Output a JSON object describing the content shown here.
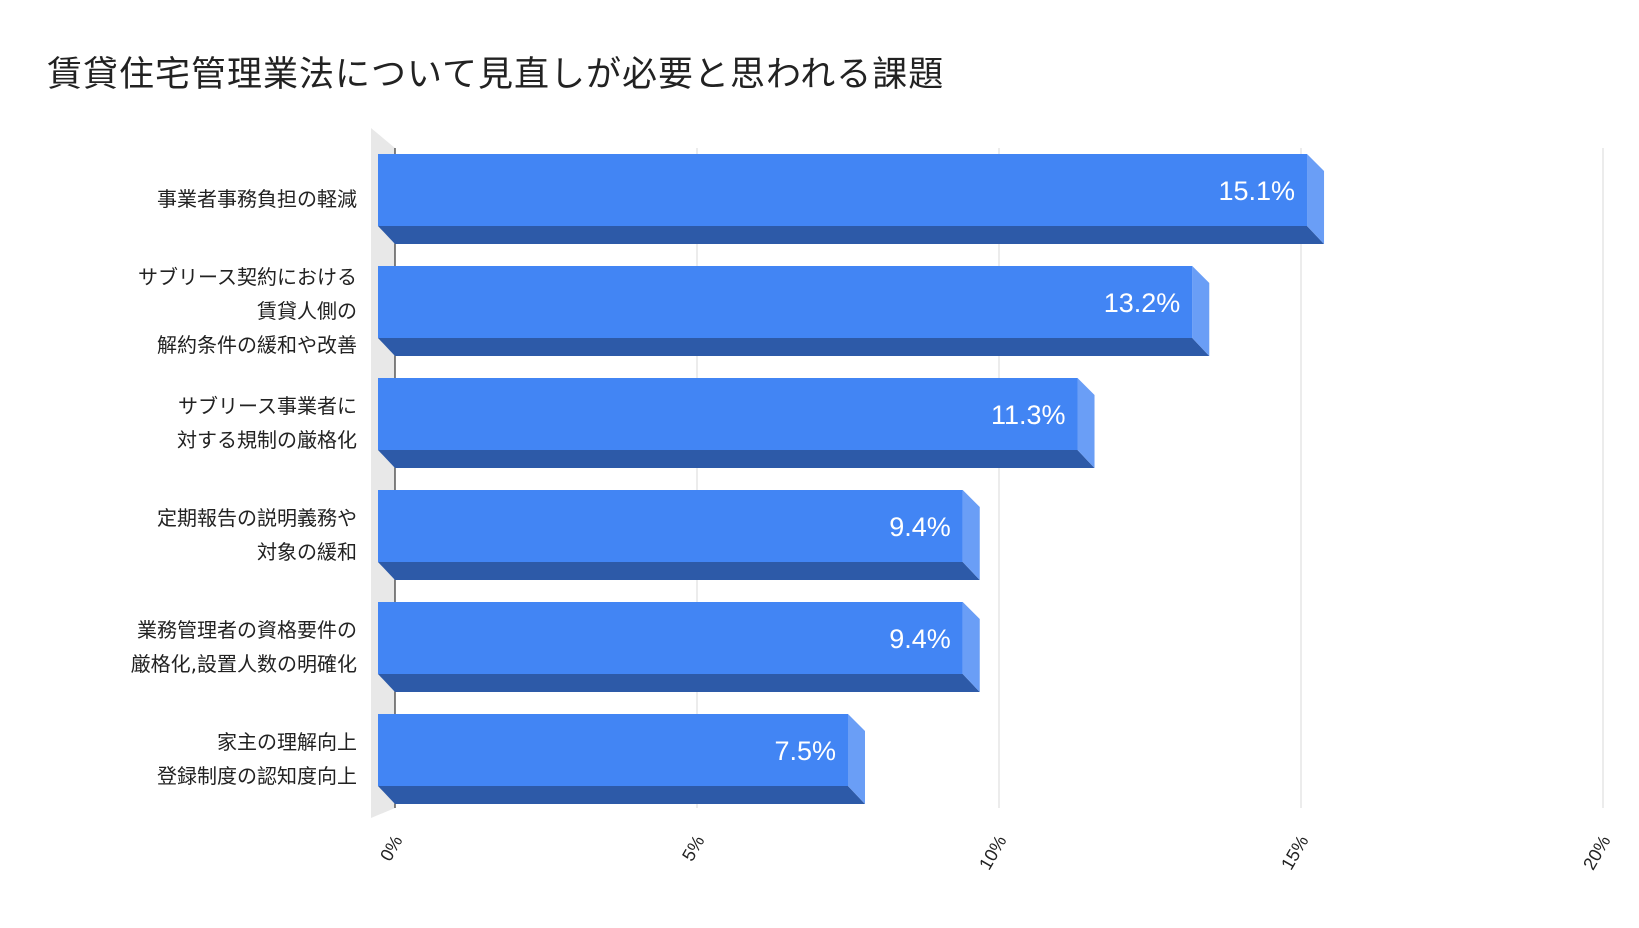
{
  "chart_data": {
    "type": "bar",
    "orientation": "horizontal",
    "style": "3d",
    "title": "賃貸住宅管理業法について見直しが必要と思われる課題",
    "xlabel": "",
    "ylabel": "",
    "categories": [
      [
        "事業者事務負担の軽減"
      ],
      [
        "サブリース契約における",
        "賃貸人側の",
        "解約条件の緩和や改善"
      ],
      [
        "サブリース事業者に",
        "対する規制の厳格化"
      ],
      [
        "定期報告の説明義務や",
        "対象の緩和"
      ],
      [
        "業務管理者の資格要件の",
        "厳格化,設置人数の明確化"
      ],
      [
        "家主の理解向上",
        "登録制度の認知度向上"
      ]
    ],
    "values": [
      15.1,
      13.2,
      11.3,
      9.4,
      9.4,
      7.5
    ],
    "value_labels": [
      "15.1%",
      "13.2%",
      "11.3%",
      "9.4%",
      "9.4%",
      "7.5%"
    ],
    "xlim": [
      0,
      20
    ],
    "x_ticks": [
      0,
      5,
      10,
      15,
      20
    ],
    "x_tick_labels": [
      "0%",
      "5%",
      "10%",
      "15%",
      "20%"
    ],
    "grid": "vertical",
    "legend": "none",
    "colors": {
      "bar_face": "#4285f4",
      "bar_bottom": "#2d5aa8",
      "bar_side": "#6a9ef6",
      "grid": "#d9d9d9",
      "floor": "#e8e8e8",
      "value_text": "#ffffff"
    }
  }
}
